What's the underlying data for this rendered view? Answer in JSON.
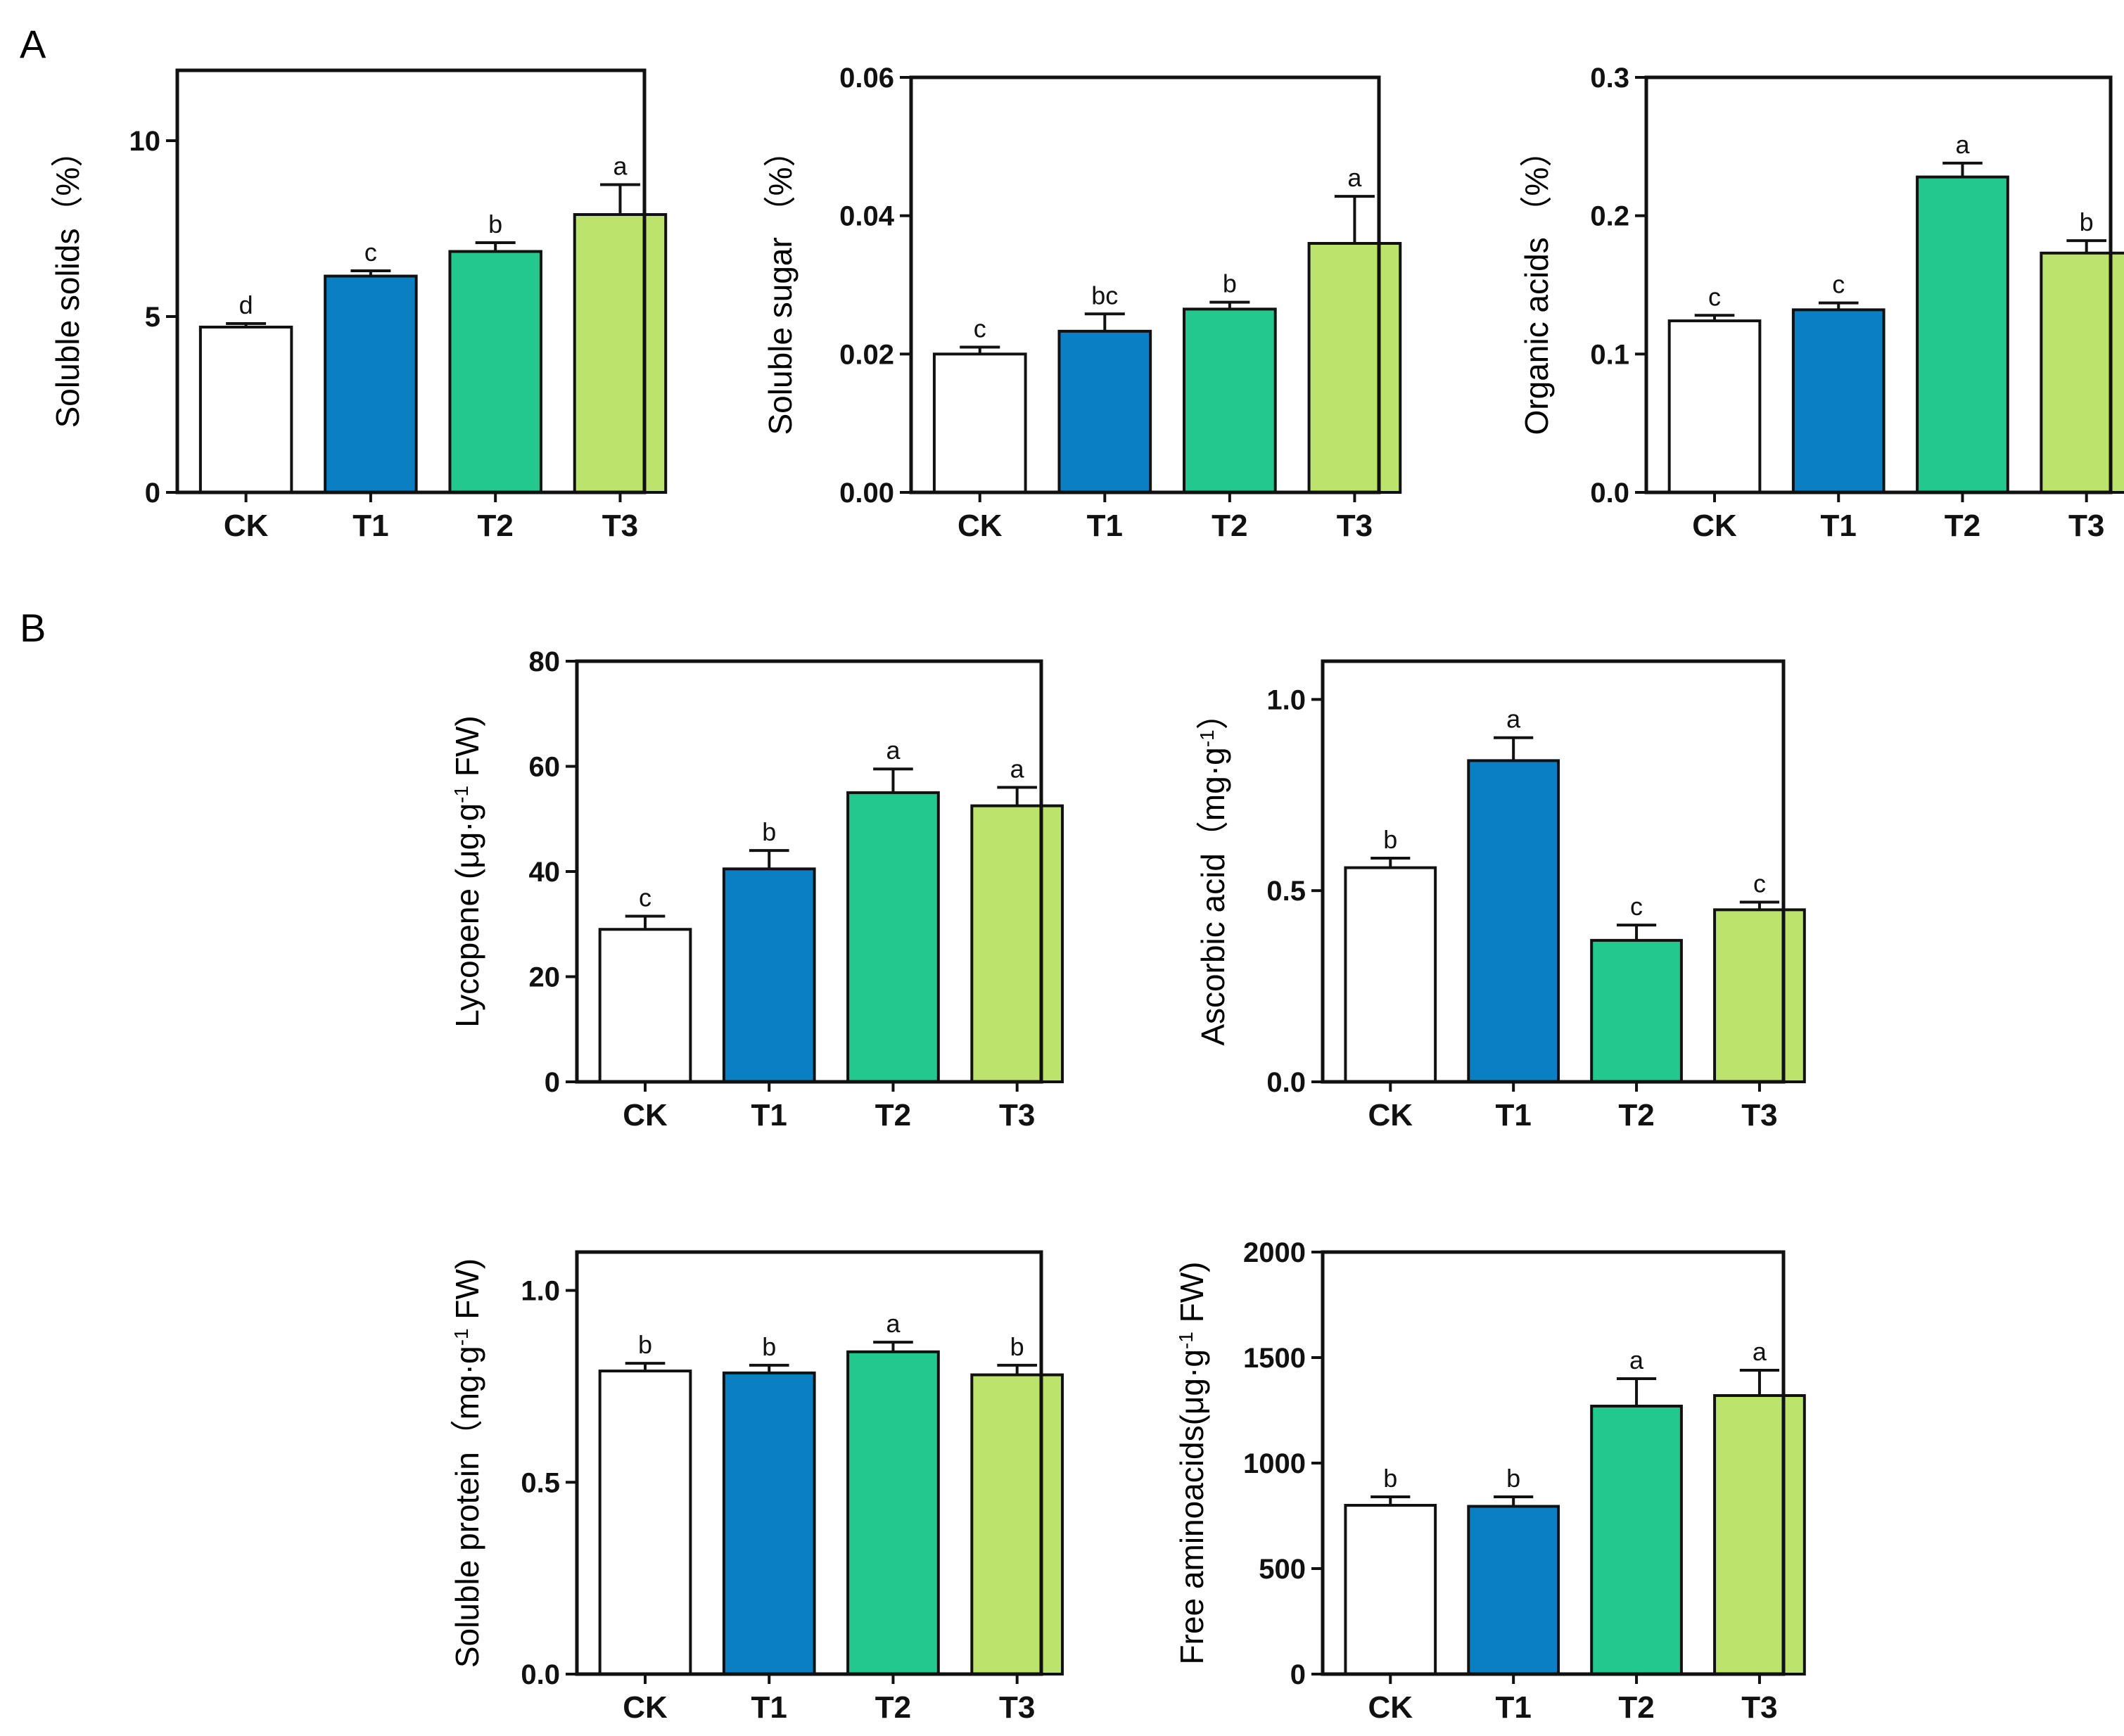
{
  "panel_labels": [
    "A",
    "B"
  ],
  "palette": {
    "CK": "#ffffff",
    "T1": "#0a7fc4",
    "T2": "#22c88e",
    "T3": "#bce36c",
    "stroke": "#111111"
  },
  "chart_data": [
    {
      "id": "soluble-solids",
      "type": "bar",
      "panel": "A",
      "ylabel": "Soluble solids（%）",
      "categories": [
        "CK",
        "T1",
        "T2",
        "T3"
      ],
      "values": [
        4.7,
        6.15,
        6.85,
        7.9
      ],
      "errors": [
        0.1,
        0.15,
        0.25,
        0.85
      ],
      "significance": [
        "d",
        "c",
        "b",
        "a"
      ],
      "ylim": [
        0,
        12
      ],
      "yticks": [
        0,
        5,
        10
      ],
      "ytick_labels": [
        "0",
        "5",
        "10"
      ]
    },
    {
      "id": "soluble-sugar",
      "type": "bar",
      "panel": "A",
      "ylabel": "Soluble sugar （%）",
      "categories": [
        "CK",
        "T1",
        "T2",
        "T3"
      ],
      "values": [
        0.02,
        0.0233,
        0.0265,
        0.036
      ],
      "errors": [
        0.001,
        0.0025,
        0.001,
        0.0068
      ],
      "significance": [
        "c",
        "bc",
        "b",
        "a"
      ],
      "ylim": [
        0,
        0.06
      ],
      "yticks": [
        0,
        0.02,
        0.04,
        0.06
      ],
      "ytick_labels": [
        "0.00",
        "0.02",
        "0.04",
        "0.06"
      ]
    },
    {
      "id": "organic-acids",
      "type": "bar",
      "panel": "A",
      "ylabel": "Organic acids （%）",
      "categories": [
        "CK",
        "T1",
        "T2",
        "T3"
      ],
      "values": [
        0.124,
        0.132,
        0.228,
        0.173
      ],
      "errors": [
        0.004,
        0.005,
        0.01,
        0.009
      ],
      "significance": [
        "c",
        "c",
        "a",
        "b"
      ],
      "ylim": [
        0,
        0.3
      ],
      "yticks": [
        0,
        0.1,
        0.2,
        0.3
      ],
      "ytick_labels": [
        "0.0",
        "0.1",
        "0.2",
        "0.3"
      ]
    },
    {
      "id": "lycopene",
      "type": "bar",
      "panel": "B",
      "ylabel": "Lycopene (μg·g",
      "ylabel_sup": "-1",
      "ylabel_suffix": " FW)",
      "categories": [
        "CK",
        "T1",
        "T2",
        "T3"
      ],
      "values": [
        29,
        40.5,
        55,
        52.5
      ],
      "errors": [
        2.5,
        3.5,
        4.5,
        3.5
      ],
      "significance": [
        "c",
        "b",
        "a",
        "a"
      ],
      "ylim": [
        0,
        80
      ],
      "yticks": [
        0,
        20,
        40,
        60,
        80
      ],
      "ytick_labels": [
        "0",
        "20",
        "40",
        "60",
        "80"
      ]
    },
    {
      "id": "ascorbic-acid",
      "type": "bar",
      "panel": "B",
      "ylabel": "Ascorbic acid（mg·g",
      "ylabel_sup": "-1",
      "ylabel_suffix": "）",
      "categories": [
        "CK",
        "T1",
        "T2",
        "T3"
      ],
      "values": [
        0.56,
        0.84,
        0.37,
        0.45
      ],
      "errors": [
        0.025,
        0.06,
        0.04,
        0.02
      ],
      "significance": [
        "b",
        "a",
        "c",
        "c"
      ],
      "ylim": [
        0,
        1.1
      ],
      "yticks": [
        0,
        0.5,
        1.0
      ],
      "ytick_labels": [
        "0.0",
        "0.5",
        "1.0"
      ]
    },
    {
      "id": "soluble-protein",
      "type": "bar",
      "panel": "B",
      "ylabel": "Soluble protein（mg·g",
      "ylabel_sup": "-1",
      "ylabel_suffix": " FW)",
      "categories": [
        "CK",
        "T1",
        "T2",
        "T3"
      ],
      "values": [
        0.79,
        0.785,
        0.84,
        0.78
      ],
      "errors": [
        0.02,
        0.02,
        0.025,
        0.025
      ],
      "significance": [
        "b",
        "b",
        "a",
        "b"
      ],
      "ylim": [
        0,
        1.1
      ],
      "yticks": [
        0,
        0.5,
        1.0
      ],
      "ytick_labels": [
        "0.0",
        "0.5",
        "1.0"
      ]
    },
    {
      "id": "free-aminoacids",
      "type": "bar",
      "panel": "B",
      "ylabel": "Free aminoacids(μg·g",
      "ylabel_sup": "-1",
      "ylabel_suffix": " FW)",
      "categories": [
        "CK",
        "T1",
        "T2",
        "T3"
      ],
      "values": [
        800,
        795,
        1270,
        1320
      ],
      "errors": [
        40,
        45,
        130,
        120
      ],
      "significance": [
        "b",
        "b",
        "a",
        "a"
      ],
      "ylim": [
        0,
        2000
      ],
      "yticks": [
        0,
        500,
        1000,
        1500,
        2000
      ],
      "ytick_labels": [
        "0",
        "500",
        "1000",
        "1500",
        "2000"
      ]
    }
  ]
}
